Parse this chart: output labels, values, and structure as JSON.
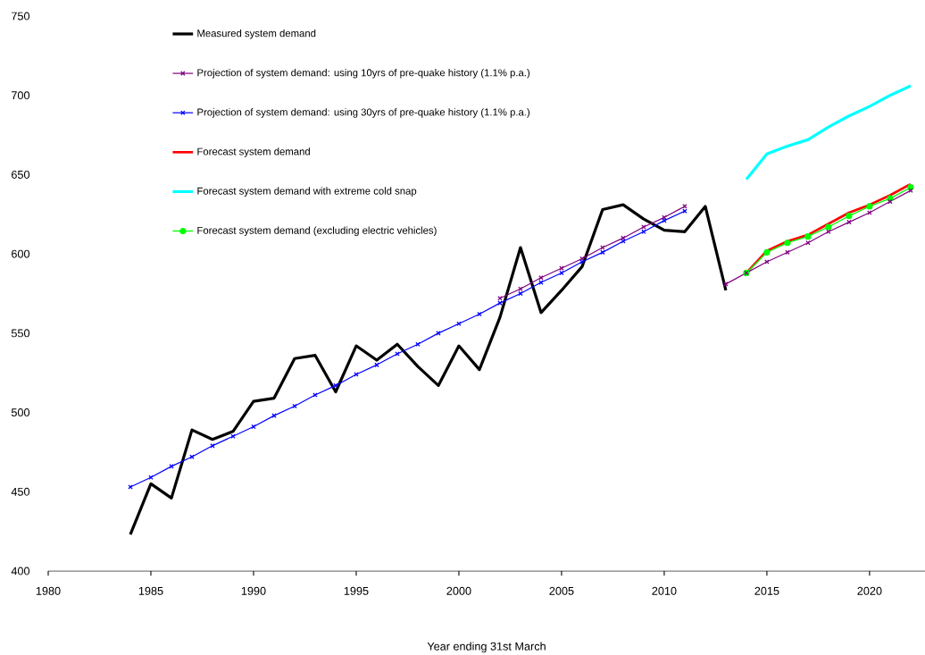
{
  "chart_data": {
    "type": "line",
    "xlabel": "Year ending 31st March",
    "xlim": [
      1980,
      2022.7
    ],
    "xticks": [
      1980,
      1985,
      1990,
      1995,
      2000,
      2005,
      2010,
      2015,
      2020
    ],
    "ylim": [
      400,
      750
    ],
    "yticks": [
      400,
      450,
      500,
      550,
      600,
      650,
      700,
      750
    ],
    "legend": "top left",
    "series": [
      {
        "name": "Measured system demand",
        "color": "#000000",
        "marker": "none",
        "x": [
          1984,
          1985,
          1986,
          1987,
          1988,
          1989,
          1990,
          1991,
          1992,
          1993,
          1994,
          1995,
          1996,
          1997,
          1998,
          1999,
          2000,
          2001,
          2002,
          2003,
          2004,
          2005,
          2006,
          2007,
          2008,
          2009,
          2010,
          2011,
          2012,
          2013
        ],
        "values": [
          423,
          455,
          446,
          489,
          483,
          488,
          507,
          509,
          534,
          536,
          513,
          542,
          533,
          543,
          529,
          517,
          542,
          527,
          560,
          604,
          563,
          577,
          592,
          628,
          631,
          622,
          615,
          614,
          630,
          577
        ]
      },
      {
        "name": "Projection of system demand: using 10yrs of pre-quake history (1.1% p.a.)",
        "color": "#800080",
        "marker": "cross",
        "x": [
          2002,
          2003,
          2004,
          2005,
          2006,
          2007,
          2008,
          2009,
          2010,
          2011,
          2012,
          2013,
          2014,
          2015,
          2016,
          2017,
          2018,
          2019,
          2020,
          2021,
          2022
        ],
        "values": [
          572,
          578,
          585,
          591,
          597,
          604,
          610,
          617,
          623,
          630,
          null,
          581,
          588,
          595,
          601,
          607,
          614,
          620,
          626,
          633,
          640
        ]
      },
      {
        "name": "Projection of system demand: using 30yrs of pre-quake history (1.1% p.a.)",
        "color": "#0000ff",
        "marker": "cross",
        "x": [
          1984,
          1985,
          1986,
          1987,
          1988,
          1989,
          1990,
          1991,
          1992,
          1993,
          1994,
          1995,
          1996,
          1997,
          1998,
          1999,
          2000,
          2001,
          2002,
          2003,
          2004,
          2005,
          2006,
          2007,
          2008,
          2009,
          2010,
          2011
        ],
        "values": [
          453,
          459,
          466,
          472,
          479,
          485,
          491,
          498,
          504,
          511,
          517,
          524,
          530,
          537,
          543,
          550,
          556,
          562,
          569,
          575,
          582,
          588,
          595,
          601,
          608,
          614,
          621,
          627
        ]
      },
      {
        "name": "Forecast system demand",
        "color": "#ff0000",
        "marker": "none",
        "x": [
          2014,
          2015,
          2016,
          2017,
          2018,
          2019,
          2020,
          2021,
          2022
        ],
        "values": [
          588,
          602,
          608,
          612,
          619,
          626,
          631,
          637,
          644
        ]
      },
      {
        "name": "Forecast system demand with extreme cold snap",
        "color": "#00ffff",
        "marker": "none",
        "x": [
          2014,
          2015,
          2016,
          2017,
          2018,
          2019,
          2020,
          2021,
          2022
        ],
        "values": [
          647,
          663,
          668,
          672,
          680,
          687,
          693,
          700,
          706
        ]
      },
      {
        "name": "Forecast system demand (excluding electric vehicles)",
        "color": "#00ff00",
        "marker": "circle",
        "x": [
          2014,
          2015,
          2016,
          2017,
          2018,
          2019,
          2020,
          2021,
          2022
        ],
        "values": [
          588,
          601,
          607,
          611,
          617,
          624,
          630,
          635,
          642
        ]
      }
    ]
  }
}
